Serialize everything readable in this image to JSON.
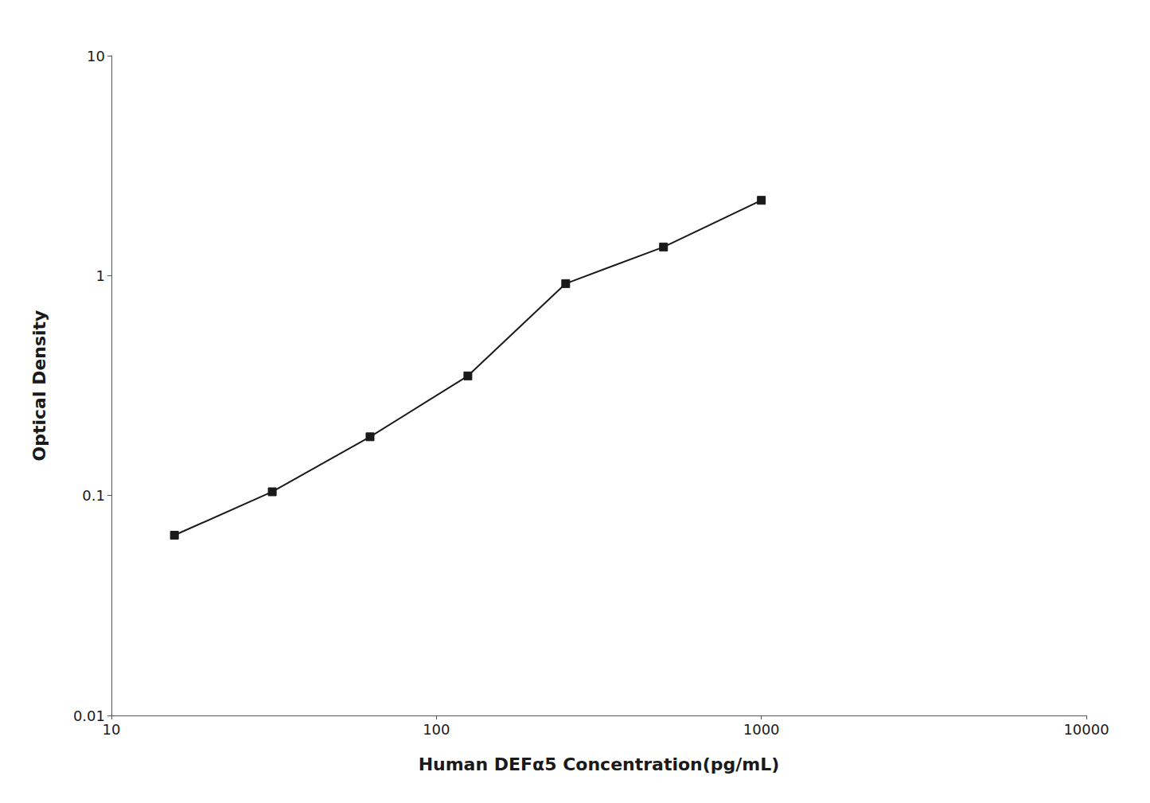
{
  "chart_data": {
    "type": "line",
    "x": [
      15.625,
      31.25,
      62.5,
      125,
      250,
      500,
      1000
    ],
    "values": [
      0.066,
      0.104,
      0.185,
      0.35,
      0.92,
      1.35,
      2.2
    ],
    "xlabel": "Human DEFα5 Concentration(pg/mL)",
    "ylabel": "Optical Density",
    "xlim": [
      10,
      10000
    ],
    "ylim": [
      0.01,
      10
    ],
    "xticks": [
      10,
      100,
      1000,
      10000
    ],
    "yticks": [
      0.01,
      0.1,
      1,
      10
    ],
    "log": true,
    "grid": false,
    "color": "#1a1a1a",
    "marker": "square"
  }
}
